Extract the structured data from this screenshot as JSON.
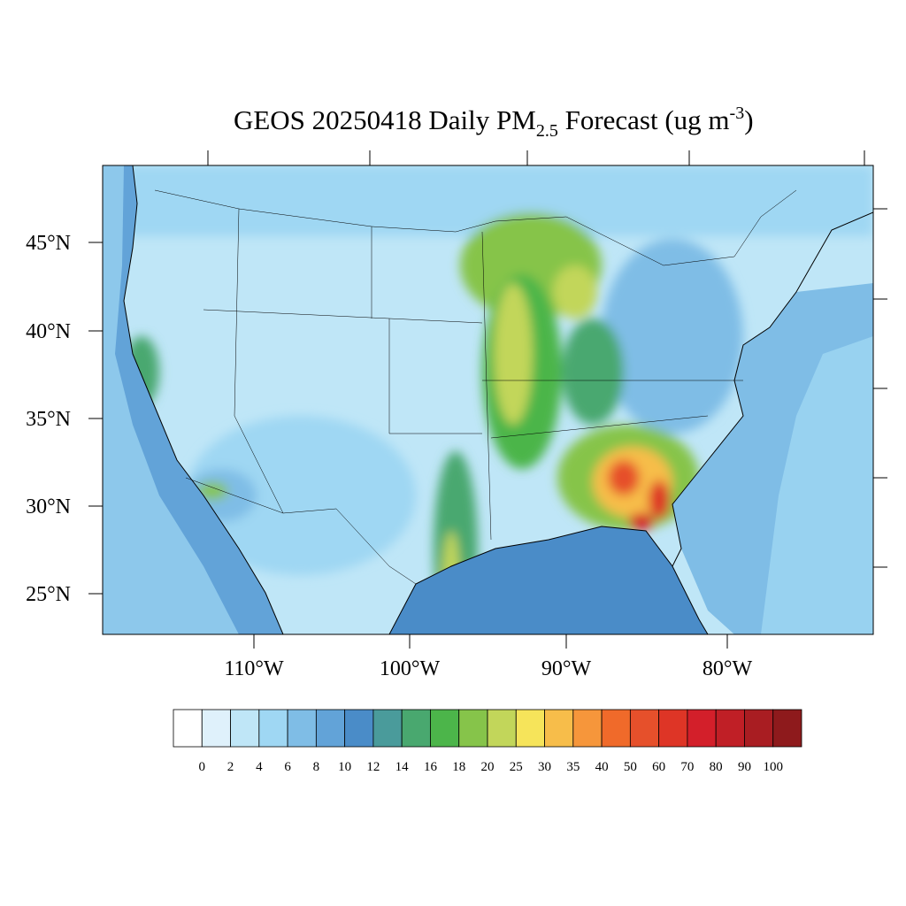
{
  "title": {
    "parts": [
      "GEOS 20250418 Daily PM",
      "2.5",
      " Forecast (ug m",
      "-3",
      ")"
    ]
  },
  "lat_labels": [
    "45°N",
    "40°N",
    "35°N",
    "30°N",
    "25°N"
  ],
  "lon_labels": [
    "110°W",
    "100°W",
    "90°W",
    "80°W"
  ],
  "colorbar": {
    "levels": [
      0,
      2,
      4,
      6,
      8,
      10,
      12,
      14,
      16,
      18,
      20,
      25,
      30,
      35,
      40,
      50,
      60,
      70,
      80,
      90,
      100
    ],
    "colors": [
      "#ffffff",
      "#dff1fb",
      "#bfe6f7",
      "#9fd7f3",
      "#7fbde6",
      "#62a3d8",
      "#4a8cc8",
      "#4a9b9b",
      "#49a86f",
      "#4cb54a",
      "#86c44a",
      "#c2d65a",
      "#f6e45a",
      "#f7bd4a",
      "#f6963b",
      "#f06a2a",
      "#e6502b",
      "#de3526",
      "#d31f2a",
      "#c01f26",
      "#a91d22",
      "#8e1a1c"
    ]
  }
}
